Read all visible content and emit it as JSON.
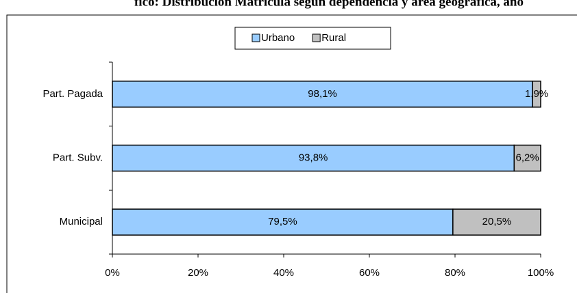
{
  "chart_data": {
    "type": "stacked_barh",
    "title": "fico: Distribución Matrícula según dependencia y área geográfica, año",
    "categories": [
      "Municipal",
      "Part. Subv.",
      "Part. Pagada"
    ],
    "series": [
      {
        "name": "Urbano",
        "color": "#99ccff",
        "values": [
          79.5,
          93.8,
          98.1
        ],
        "value_labels": [
          "79,5%",
          "93,8%",
          "98,1%"
        ]
      },
      {
        "name": "Rural",
        "color": "#c0c0c0",
        "values": [
          20.5,
          6.2,
          1.9
        ],
        "value_labels": [
          "20,5%",
          "6,2%",
          "1,9%"
        ]
      }
    ],
    "xlim": [
      0,
      100
    ],
    "xticks": [
      {
        "value": 0,
        "label": "0%"
      },
      {
        "value": 20,
        "label": "20%"
      },
      {
        "value": 40,
        "label": "40%"
      },
      {
        "value": 60,
        "label": "60%"
      },
      {
        "value": 80,
        "label": "80%"
      },
      {
        "value": 100,
        "label": "100%"
      }
    ],
    "legend": "top"
  }
}
